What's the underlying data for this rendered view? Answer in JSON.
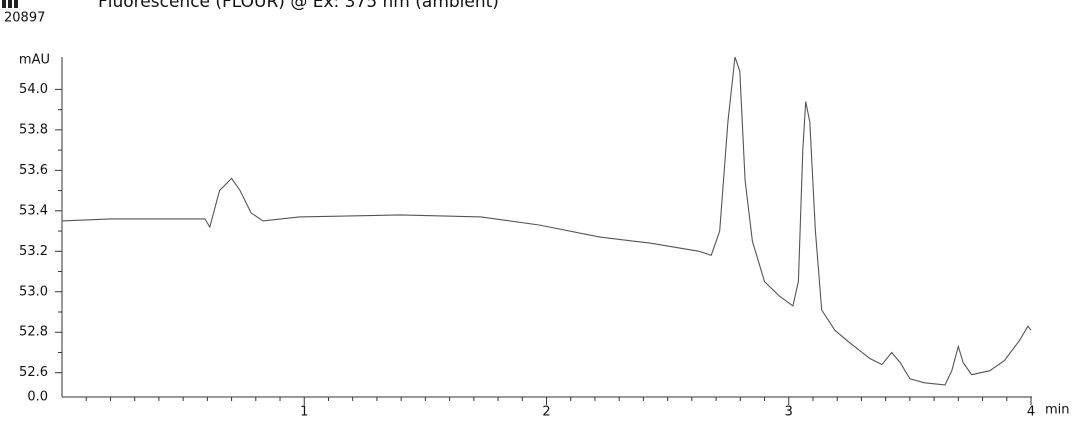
{
  "chart_data": {
    "type": "line",
    "title": "Fluorescence (FLOUR) @ Ex: 375 nm (ambient)",
    "run_label": "20897",
    "y_axis_label": "mAU",
    "x_axis_label": "min",
    "y_origin_label": "0.0",
    "xlim": [
      0,
      4
    ],
    "xticks": [
      1,
      2,
      3,
      4
    ],
    "ylim": [
      52.48,
      54.16
    ],
    "yticks": [
      {
        "value": 52.6,
        "label": "52.6"
      },
      {
        "value": 52.8,
        "label": "52.8"
      },
      {
        "value": 53.0,
        "label": "53.0"
      },
      {
        "value": 53.2,
        "label": "53.2"
      },
      {
        "value": 53.4,
        "label": "53.4"
      },
      {
        "value": 53.6,
        "label": "53.6"
      },
      {
        "value": 53.8,
        "label": "53.8"
      },
      {
        "value": 54.0,
        "label": "54.0"
      }
    ],
    "x": [
      0,
      0.2,
      0.4,
      0.59,
      0.61,
      0.65,
      0.7,
      0.735,
      0.78,
      0.83,
      0.98,
      1.4,
      1.73,
      1.97,
      2.22,
      2.43,
      2.63,
      2.68,
      2.715,
      2.749,
      2.778,
      2.798,
      2.82,
      2.85,
      2.9,
      2.96,
      3.017,
      3.04,
      3.058,
      3.07,
      3.087,
      3.11,
      3.136,
      3.19,
      3.25,
      3.335,
      3.385,
      3.425,
      3.46,
      3.5,
      3.56,
      3.645,
      3.673,
      3.7,
      3.72,
      3.755,
      3.83,
      3.89,
      3.953,
      3.987,
      4.0
    ],
    "series": [
      {
        "color": "#555555",
        "values": [
          53.35,
          53.36,
          53.36,
          53.36,
          53.32,
          53.5,
          53.56,
          53.5,
          53.39,
          53.35,
          53.37,
          53.38,
          53.37,
          53.33,
          53.27,
          53.24,
          53.2,
          53.18,
          53.3,
          53.84,
          54.16,
          54.09,
          53.55,
          53.25,
          53.05,
          52.98,
          52.93,
          53.05,
          53.7,
          53.94,
          53.84,
          53.3,
          52.91,
          52.81,
          52.75,
          52.67,
          52.64,
          52.7,
          52.65,
          52.57,
          52.55,
          52.54,
          52.61,
          52.73,
          52.65,
          52.59,
          52.61,
          52.66,
          52.76,
          52.83,
          52.81
        ]
      }
    ]
  }
}
